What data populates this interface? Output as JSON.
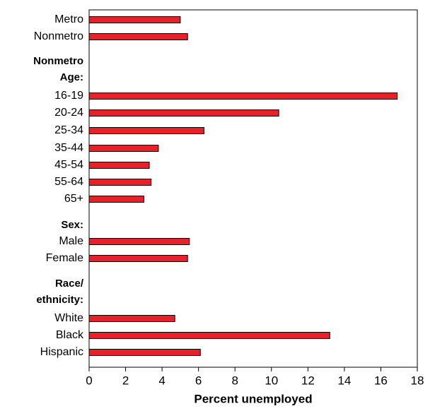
{
  "chart_data": {
    "type": "bar",
    "orientation": "horizontal",
    "categories": [
      "Metro",
      "Nonmetro",
      "Nonmetro",
      "Age:",
      "16-19",
      "20-24",
      "25-34",
      "35-44",
      "45-54",
      "55-64",
      "65+",
      "Sex:",
      "Male",
      "Female",
      "Race/",
      "ethnicity:",
      "White",
      "Black",
      "Hispanic"
    ],
    "values": [
      5.0,
      5.4,
      null,
      null,
      16.9,
      10.4,
      6.3,
      3.8,
      3.3,
      3.4,
      3.0,
      null,
      5.5,
      5.4,
      null,
      null,
      4.7,
      13.2,
      6.1
    ],
    "color": "#e8202a",
    "xlabel": "Percent unemployed",
    "xlim": [
      0,
      18
    ],
    "xticks": [
      0,
      2,
      4,
      6,
      8,
      10,
      12,
      14,
      16,
      18
    ]
  }
}
